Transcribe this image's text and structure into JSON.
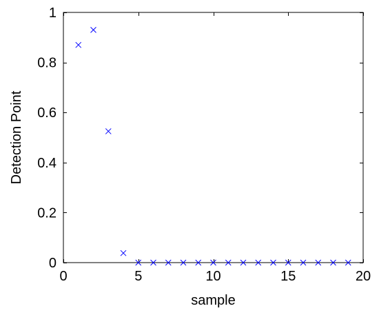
{
  "chart_data": {
    "type": "scatter",
    "title": "",
    "xlabel": "sample",
    "ylabel": "Detection Point",
    "xlim": [
      0,
      20
    ],
    "ylim": [
      0,
      1
    ],
    "xticks": [
      0,
      5,
      10,
      15,
      20
    ],
    "yticks": [
      0,
      0.2,
      0.4,
      0.6,
      0.8,
      1
    ],
    "xtick_labels": [
      "0",
      "5",
      "10",
      "15",
      "20"
    ],
    "ytick_labels": [
      "0",
      "0.2",
      "0.4",
      "0.6",
      "0.8",
      "1"
    ],
    "grid": false,
    "marker": "x",
    "marker_color": "#0000ff",
    "axis_color": "#000000",
    "series": [
      {
        "x": [
          1,
          2,
          3,
          4,
          5,
          6,
          7,
          8,
          9,
          10,
          11,
          12,
          13,
          14,
          15,
          16,
          17,
          18,
          19
        ],
        "y": [
          0.87,
          0.93,
          0.525,
          0.038,
          0.0,
          0.0,
          0.0,
          0.0,
          0.0,
          0.0,
          0.0,
          0.0,
          0.0,
          0.0,
          0.0,
          0.0,
          0.0,
          0.0,
          0.0
        ]
      }
    ]
  }
}
